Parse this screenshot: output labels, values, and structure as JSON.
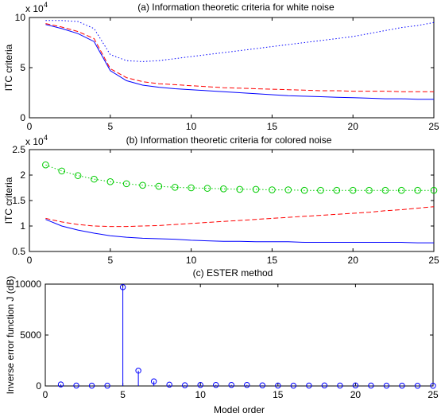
{
  "chart_data": [
    {
      "type": "line",
      "title": "(a) Information theoretic criteria for white noise",
      "xlabel": "",
      "ylabel": "ITC criteria",
      "exponent_label": "x 10",
      "exponent_power": "4",
      "xlim": [
        0,
        25
      ],
      "ylim": [
        0,
        10
      ],
      "xticks": [
        0,
        5,
        10,
        15,
        20,
        25
      ],
      "yticks": [
        0,
        5,
        10
      ],
      "xtick_labels": [
        "0",
        "5",
        "10",
        "15",
        "20",
        "25"
      ],
      "ytick_labels": [
        "0",
        "5",
        "10"
      ],
      "x": [
        1,
        2,
        3,
        4,
        5,
        6,
        7,
        8,
        9,
        10,
        11,
        12,
        13,
        14,
        15,
        16,
        17,
        18,
        19,
        20,
        21,
        22,
        23,
        24,
        25
      ],
      "series": [
        {
          "color": "#0000ff",
          "style": "solid",
          "marker": "none",
          "values": [
            9.3,
            8.9,
            8.4,
            7.6,
            4.7,
            3.7,
            3.25,
            3.05,
            2.9,
            2.8,
            2.7,
            2.6,
            2.5,
            2.4,
            2.3,
            2.2,
            2.15,
            2.1,
            2.05,
            2.0,
            1.95,
            1.9,
            1.9,
            1.85,
            1.85
          ]
        },
        {
          "color": "#ff0000",
          "style": "dashed",
          "marker": "none",
          "values": [
            9.4,
            9.05,
            8.6,
            7.9,
            4.9,
            4.0,
            3.6,
            3.4,
            3.3,
            3.2,
            3.1,
            3.0,
            2.95,
            2.9,
            2.85,
            2.8,
            2.75,
            2.7,
            2.7,
            2.65,
            2.65,
            2.65,
            2.6,
            2.6,
            2.6
          ]
        },
        {
          "color": "#0000ff",
          "style": "dotted",
          "marker": "none",
          "values": [
            9.7,
            9.7,
            9.6,
            8.9,
            6.3,
            5.7,
            5.6,
            5.7,
            5.9,
            6.1,
            6.3,
            6.5,
            6.7,
            6.9,
            7.1,
            7.3,
            7.5,
            7.7,
            7.9,
            8.1,
            8.4,
            8.7,
            9.0,
            9.2,
            9.5
          ]
        }
      ]
    },
    {
      "type": "line",
      "title": "(b) Information theoretic criteria for colored noise",
      "xlabel": "",
      "ylabel": "ITC criteria",
      "exponent_label": "x 10",
      "exponent_power": "4",
      "xlim": [
        0,
        25
      ],
      "ylim": [
        0.5,
        2.5
      ],
      "xticks": [
        0,
        5,
        10,
        15,
        20,
        25
      ],
      "yticks": [
        0.5,
        1,
        1.5,
        2,
        2.5
      ],
      "xtick_labels": [
        "0",
        "5",
        "10",
        "15",
        "20",
        "25"
      ],
      "ytick_labels": [
        "0.5",
        "1",
        "1.5",
        "2",
        "2.5"
      ],
      "x": [
        1,
        2,
        3,
        4,
        5,
        6,
        7,
        8,
        9,
        10,
        11,
        12,
        13,
        14,
        15,
        16,
        17,
        18,
        19,
        20,
        21,
        22,
        23,
        24,
        25
      ],
      "series": [
        {
          "color": "#0000ff",
          "style": "solid",
          "marker": "none",
          "values": [
            1.13,
            1.0,
            0.92,
            0.86,
            0.81,
            0.78,
            0.76,
            0.75,
            0.74,
            0.72,
            0.71,
            0.7,
            0.7,
            0.69,
            0.69,
            0.69,
            0.68,
            0.68,
            0.68,
            0.68,
            0.68,
            0.68,
            0.68,
            0.67,
            0.67
          ]
        },
        {
          "color": "#ff0000",
          "style": "dashed",
          "marker": "none",
          "values": [
            1.15,
            1.08,
            1.03,
            1.0,
            0.99,
            0.99,
            1.0,
            1.01,
            1.03,
            1.05,
            1.07,
            1.09,
            1.11,
            1.13,
            1.15,
            1.17,
            1.19,
            1.21,
            1.23,
            1.25,
            1.27,
            1.3,
            1.32,
            1.35,
            1.38
          ]
        },
        {
          "color": "#00cc00",
          "style": "dotted",
          "marker": "circle",
          "values": [
            2.2,
            2.08,
            1.99,
            1.92,
            1.87,
            1.83,
            1.8,
            1.78,
            1.76,
            1.75,
            1.74,
            1.73,
            1.72,
            1.72,
            1.71,
            1.71,
            1.7,
            1.7,
            1.7,
            1.7,
            1.7,
            1.7,
            1.7,
            1.7,
            1.7
          ]
        }
      ]
    },
    {
      "type": "stem",
      "title": "(c) ESTER method",
      "xlabel": "Model order",
      "ylabel": "Inverse error function J (dB)",
      "xlim": [
        0,
        25
      ],
      "ylim": [
        0,
        10000
      ],
      "xticks": [
        0,
        5,
        10,
        15,
        20,
        25
      ],
      "yticks": [
        0,
        5000,
        10000
      ],
      "xtick_labels": [
        "0",
        "5",
        "10",
        "15",
        "20",
        "25"
      ],
      "ytick_labels": [
        "0",
        "5000",
        "10000"
      ],
      "x": [
        1,
        2,
        3,
        4,
        5,
        6,
        7,
        8,
        9,
        10,
        11,
        12,
        13,
        14,
        15,
        16,
        17,
        18,
        19,
        20,
        21,
        22,
        23,
        24,
        25
      ],
      "series": [
        {
          "color": "#0000ff",
          "style": "solid",
          "marker": "circle",
          "values": [
            150,
            40,
            30,
            30,
            9700,
            1500,
            450,
            130,
            70,
            100,
            100,
            100,
            100,
            60,
            40,
            30,
            40,
            50,
            40,
            50,
            40,
            30,
            30,
            20,
            20
          ]
        }
      ]
    }
  ]
}
